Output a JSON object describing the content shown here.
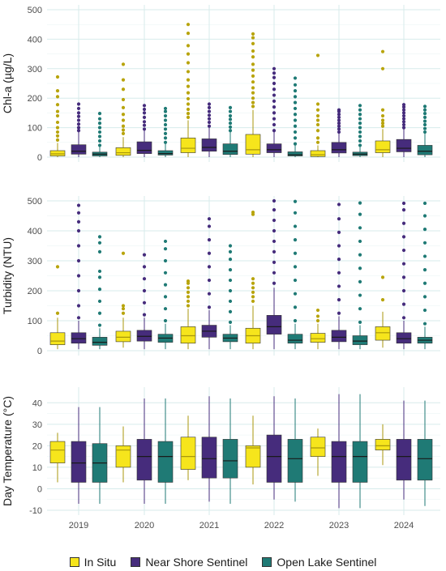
{
  "chart_data": [
    {
      "type": "box",
      "ylabel": "Chl-a (µg/L)",
      "ylim": [
        0,
        500
      ],
      "yticks": [
        0,
        100,
        200,
        300,
        400,
        500
      ],
      "categories": [
        "2019",
        "2020",
        "2021",
        "2022",
        "2023",
        "2024"
      ],
      "series": [
        {
          "name": "In Situ",
          "boxes": [
            {
              "whislo": 0,
              "q1": 4,
              "med": 11,
              "q3": 22,
              "whishi": 48,
              "fliers": [
                58,
                72,
                85,
                100,
                118,
                140,
                155,
                178,
                205,
                225,
                272
              ]
            },
            {
              "whislo": 0,
              "q1": 6,
              "med": 15,
              "q3": 32,
              "whishi": 68,
              "fliers": [
                80,
                92,
                105,
                125,
                145,
                168,
                195,
                230,
                262,
                315
              ]
            },
            {
              "whislo": 0,
              "q1": 15,
              "med": 30,
              "q3": 65,
              "whishi": 125,
              "fliers": [
                135,
                148,
                162,
                180,
                198,
                218,
                240,
                262,
                290,
                320,
                350,
                378,
                420,
                450
              ]
            },
            {
              "whislo": 0,
              "q1": 10,
              "med": 25,
              "q3": 77,
              "whishi": 160,
              "fliers": [
                172,
                185,
                200,
                218,
                235,
                255,
                275,
                295,
                315,
                340,
                360,
                385,
                405,
                418
              ]
            },
            {
              "whislo": 0,
              "q1": 2,
              "med": 8,
              "q3": 22,
              "whishi": 40,
              "fliers": [
                50,
                65,
                90,
                110,
                125,
                140,
                160,
                180,
                345
              ]
            },
            {
              "whislo": 0,
              "q1": 15,
              "med": 25,
              "q3": 55,
              "whishi": 95,
              "fliers": [
                105,
                115,
                125,
                140,
                160,
                300,
                358
              ]
            }
          ]
        },
        {
          "name": "Near Shore Sentinel",
          "boxes": [
            {
              "whislo": 0,
              "q1": 10,
              "med": 20,
              "q3": 42,
              "whishi": 85,
              "fliers": [
                90,
                100,
                112,
                125,
                138,
                150,
                165,
                180
              ]
            },
            {
              "whislo": 0,
              "q1": 12,
              "med": 23,
              "q3": 52,
              "whishi": 90,
              "fliers": [
                95,
                108,
                120,
                135,
                150,
                162,
                175
              ]
            },
            {
              "whislo": 0,
              "q1": 20,
              "med": 33,
              "q3": 62,
              "whishi": 100,
              "fliers": [
                105,
                118,
                130,
                142,
                155,
                168,
                180
              ]
            },
            {
              "whislo": 0,
              "q1": 15,
              "med": 25,
              "q3": 45,
              "whishi": 85,
              "fliers": [
                90,
                110,
                130,
                150,
                170,
                190,
                210,
                230,
                250,
                270,
                285,
                300
              ]
            },
            {
              "whislo": 0,
              "q1": 14,
              "med": 25,
              "q3": 50,
              "whishi": 80,
              "fliers": [
                85,
                95,
                105,
                115,
                125,
                135,
                145,
                155,
                160
              ]
            },
            {
              "whislo": 0,
              "q1": 18,
              "med": 30,
              "q3": 60,
              "whishi": 95,
              "fliers": [
                100,
                110,
                120,
                130,
                140,
                150,
                160,
                170,
                178
              ]
            }
          ]
        },
        {
          "name": "Open Lake Sentinel",
          "boxes": [
            {
              "whislo": 0,
              "q1": 4,
              "med": 10,
              "q3": 17,
              "whishi": 35,
              "fliers": [
                40,
                55,
                70,
                85,
                100,
                115,
                130,
                148
              ]
            },
            {
              "whislo": 0,
              "q1": 7,
              "med": 12,
              "q3": 22,
              "whishi": 45,
              "fliers": [
                50,
                65,
                80,
                95,
                110,
                125,
                140,
                155,
                165
              ]
            },
            {
              "whislo": 0,
              "q1": 9,
              "med": 20,
              "q3": 45,
              "whishi": 85,
              "fliers": [
                90,
                102,
                115,
                128,
                140,
                155,
                168
              ]
            },
            {
              "whislo": 0,
              "q1": 4,
              "med": 8,
              "q3": 18,
              "whishi": 40,
              "fliers": [
                45,
                65,
                85,
                105,
                125,
                145,
                165,
                185,
                205,
                225,
                245,
                268
              ]
            },
            {
              "whislo": 0,
              "q1": 5,
              "med": 10,
              "q3": 17,
              "whishi": 35,
              "fliers": [
                40,
                55,
                70,
                85,
                100,
                115,
                130,
                145,
                160,
                175
              ]
            },
            {
              "whislo": 0,
              "q1": 8,
              "med": 20,
              "q3": 40,
              "whishi": 80,
              "fliers": [
                85,
                97,
                110,
                122,
                135,
                148,
                160,
                172
              ]
            }
          ]
        }
      ]
    },
    {
      "type": "box",
      "ylabel": "Turbidity (NTU)",
      "ylim": [
        0,
        500
      ],
      "yticks": [
        0,
        100,
        200,
        300,
        400,
        500
      ],
      "categories": [
        "2019",
        "2020",
        "2021",
        "2022",
        "2023",
        "2024"
      ],
      "series": [
        {
          "name": "In Situ",
          "boxes": [
            {
              "whislo": 5,
              "q1": 20,
              "med": 32,
              "q3": 60,
              "whishi": 110,
              "fliers": [
                125,
                280
              ]
            },
            {
              "whislo": 10,
              "q1": 30,
              "med": 45,
              "q3": 65,
              "whishi": 110,
              "fliers": [
                125,
                140,
                150,
                325
              ]
            },
            {
              "whislo": 5,
              "q1": 25,
              "med": 50,
              "q3": 80,
              "whishi": 140,
              "fliers": [
                150,
                165,
                180,
                195,
                210,
                225,
                232
              ]
            },
            {
              "whislo": 5,
              "q1": 25,
              "med": 50,
              "q3": 75,
              "whishi": 150,
              "fliers": [
                165,
                180,
                195,
                210,
                225,
                240,
                455,
                462
              ]
            },
            {
              "whislo": 5,
              "q1": 28,
              "med": 40,
              "q3": 58,
              "whishi": 90,
              "fliers": [
                100,
                115,
                135
              ]
            },
            {
              "whislo": 10,
              "q1": 35,
              "med": 60,
              "q3": 80,
              "whishi": 130,
              "fliers": [
                170,
                245
              ]
            }
          ]
        },
        {
          "name": "Near Shore Sentinel",
          "boxes": [
            {
              "whislo": 5,
              "q1": 25,
              "med": 40,
              "q3": 60,
              "whishi": 100,
              "fliers": [
                110,
                150,
                200,
                250,
                300,
                350,
                400,
                430,
                460,
                485
              ]
            },
            {
              "whislo": 5,
              "q1": 32,
              "med": 48,
              "q3": 68,
              "whishi": 110,
              "fliers": [
                120,
                160,
                200,
                240,
                280,
                320
              ]
            },
            {
              "whislo": 5,
              "q1": 45,
              "med": 65,
              "q3": 85,
              "whishi": 135,
              "fliers": [
                145,
                190,
                235,
                280,
                325,
                370,
                415,
                440
              ]
            },
            {
              "whislo": 5,
              "q1": 55,
              "med": 80,
              "q3": 118,
              "whishi": 210,
              "fliers": [
                225,
                260,
                295,
                330,
                365,
                400,
                435,
                470,
                500
              ]
            },
            {
              "whislo": 5,
              "q1": 30,
              "med": 45,
              "q3": 68,
              "whishi": 115,
              "fliers": [
                125,
                170,
                215,
                260,
                305,
                350,
                395,
                440,
                488
              ]
            },
            {
              "whislo": 5,
              "q1": 25,
              "med": 40,
              "q3": 60,
              "whishi": 100,
              "fliers": [
                110,
                155,
                200,
                245,
                290,
                335,
                380,
                425,
                470,
                492
              ]
            }
          ]
        },
        {
          "name": "Open Lake Sentinel",
          "boxes": [
            {
              "whislo": 5,
              "q1": 18,
              "med": 28,
              "q3": 45,
              "whishi": 75,
              "fliers": [
                85,
                125,
                165,
                205,
                245,
                265,
                330,
                360,
                380
              ]
            },
            {
              "whislo": 5,
              "q1": 28,
              "med": 42,
              "q3": 55,
              "whishi": 90,
              "fliers": [
                100,
                140,
                180,
                220,
                260,
                300,
                340,
                365
              ]
            },
            {
              "whislo": 5,
              "q1": 30,
              "med": 42,
              "q3": 55,
              "whishi": 85,
              "fliers": [
                95,
                130,
                165,
                200,
                235,
                270,
                305,
                330,
                350
              ]
            },
            {
              "whislo": 5,
              "q1": 25,
              "med": 35,
              "q3": 55,
              "whishi": 90,
              "fliers": [
                100,
                145,
                190,
                235,
                280,
                325,
                370,
                415,
                460,
                498
              ]
            },
            {
              "whislo": 5,
              "q1": 20,
              "med": 32,
              "q3": 50,
              "whishi": 85,
              "fliers": [
                95,
                140,
                185,
                230,
                275,
                320,
                365,
                410,
                455,
                493
              ]
            },
            {
              "whislo": 5,
              "q1": 25,
              "med": 35,
              "q3": 45,
              "whishi": 80,
              "fliers": [
                90,
                135,
                180,
                225,
                270,
                315,
                360,
                405,
                450,
                492
              ]
            }
          ]
        }
      ]
    },
    {
      "type": "box",
      "ylabel": "Day Temperature (°C)",
      "ylim": [
        -10,
        45
      ],
      "yticks": [
        -10,
        0,
        10,
        20,
        30,
        40
      ],
      "categories": [
        "2019",
        "2020",
        "2021",
        "2022",
        "2023",
        "2024"
      ],
      "series": [
        {
          "name": "In Situ",
          "boxes": [
            {
              "whislo": 3,
              "q1": 12,
              "med": 18,
              "q3": 22,
              "whishi": 26,
              "fliers": []
            },
            {
              "whislo": 3,
              "q1": 10,
              "med": 18,
              "q3": 20,
              "whishi": 29,
              "fliers": []
            },
            {
              "whislo": 4,
              "q1": 9,
              "med": 15,
              "q3": 24,
              "whishi": 34,
              "fliers": []
            },
            {
              "whislo": 2,
              "q1": 10,
              "med": 19,
              "q3": 20,
              "whishi": 34,
              "fliers": []
            },
            {
              "whislo": 6,
              "q1": 15,
              "med": 19,
              "q3": 24,
              "whishi": 28,
              "fliers": []
            },
            {
              "whislo": 11,
              "q1": 18,
              "med": 20,
              "q3": 23,
              "whishi": 30,
              "fliers": []
            }
          ]
        },
        {
          "name": "Near Shore Sentinel",
          "boxes": [
            {
              "whislo": -7,
              "q1": 3,
              "med": 12,
              "q3": 22,
              "whishi": 38,
              "fliers": []
            },
            {
              "whislo": -7,
              "q1": 4,
              "med": 15,
              "q3": 23,
              "whishi": 42,
              "fliers": []
            },
            {
              "whislo": -6,
              "q1": 5,
              "med": 14,
              "q3": 24,
              "whishi": 43,
              "fliers": []
            },
            {
              "whislo": -5,
              "q1": 3,
              "med": 15,
              "q3": 25,
              "whishi": 43,
              "fliers": []
            },
            {
              "whislo": -9,
              "q1": 3,
              "med": 15,
              "q3": 22,
              "whishi": 44,
              "fliers": []
            },
            {
              "whislo": -5,
              "q1": 4,
              "med": 15,
              "q3": 23,
              "whishi": 41,
              "fliers": []
            }
          ]
        },
        {
          "name": "Open Lake Sentinel",
          "boxes": [
            {
              "whislo": -7,
              "q1": 3,
              "med": 12,
              "q3": 21,
              "whishi": 38,
              "fliers": []
            },
            {
              "whislo": -7,
              "q1": 3,
              "med": 15,
              "q3": 22,
              "whishi": 42,
              "fliers": []
            },
            {
              "whislo": -7,
              "q1": 5,
              "med": 13,
              "q3": 23,
              "whishi": 42,
              "fliers": []
            },
            {
              "whislo": -6,
              "q1": 3,
              "med": 14,
              "q3": 23,
              "whishi": 42,
              "fliers": []
            },
            {
              "whislo": -9,
              "q1": 3,
              "med": 15,
              "q3": 22,
              "whishi": 44,
              "fliers": []
            },
            {
              "whislo": -8,
              "q1": 4,
              "med": 14,
              "q3": 23,
              "whishi": 41,
              "fliers": []
            }
          ]
        }
      ]
    }
  ],
  "colors": {
    "In Situ": "#f6e51c",
    "Near Shore Sentinel": "#462c7c",
    "Open Lake Sentinel": "#1f7a75",
    "in_situ_dots": "#b8a40c",
    "grid": "#d7ebeb"
  },
  "legend": {
    "position": "bottom",
    "items": [
      "In Situ",
      "Near Shore Sentinel",
      "Open Lake Sentinel"
    ]
  }
}
